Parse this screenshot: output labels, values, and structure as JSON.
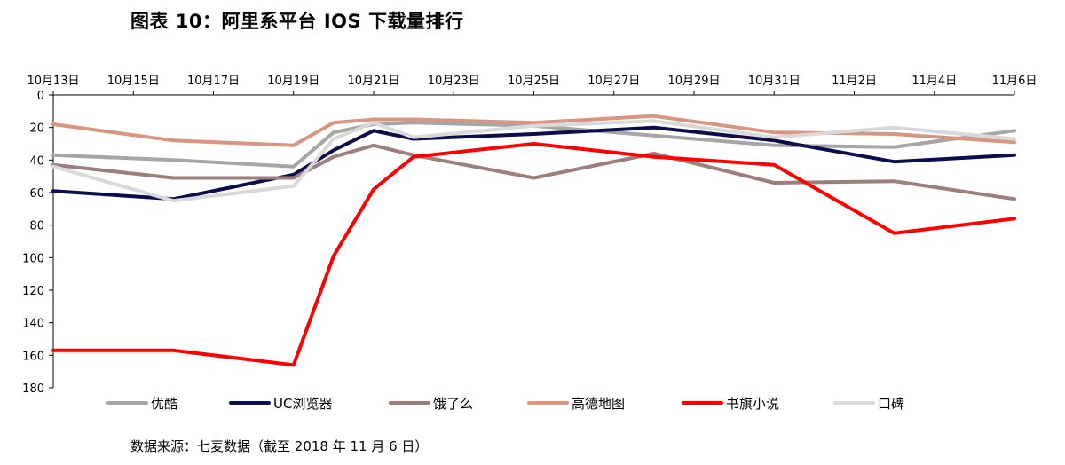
{
  "title": "图表 10：阿里系平台 IOS 下载量排行",
  "source": "数据来源：七麦数据（截至 2018 年 11 月 6 日）",
  "chart_data": {
    "type": "line",
    "title": "图表 10：阿里系平台 IOS 下载量排行",
    "x": [
      "10月13日",
      "10月16日",
      "10月19日",
      "10月20日",
      "10月21日",
      "10月22日",
      "10月25日",
      "10月28日",
      "10月31日",
      "11月3日",
      "11月6日"
    ],
    "x_ticks": [
      "10月13日",
      "10月15日",
      "10月17日",
      "10月19日",
      "10月21日",
      "10月23日",
      "10月25日",
      "10月27日",
      "10月29日",
      "10月31日",
      "11月2日",
      "11月4日",
      "11月6日"
    ],
    "y_ticks": [
      0,
      20,
      40,
      60,
      80,
      100,
      120,
      140,
      160,
      180
    ],
    "ylim": [
      0,
      180
    ],
    "y_inverted": true,
    "x_axis_position": "top",
    "legend_position": "bottom",
    "series": [
      {
        "name": "优酷",
        "color": "#a6a6a6",
        "values": [
          37,
          40,
          44,
          23,
          18,
          17,
          19,
          25,
          31,
          32,
          22
        ]
      },
      {
        "name": "UC浏览器",
        "color": "#0d0d4d",
        "values": [
          59,
          64,
          49,
          34,
          22,
          27,
          24,
          20,
          28,
          41,
          37
        ]
      },
      {
        "name": "饿了么",
        "color": "#9e7d7d",
        "values": [
          43,
          51,
          51,
          38,
          31,
          37,
          51,
          36,
          54,
          53,
          64
        ]
      },
      {
        "name": "高德地图",
        "color": "#d9957f",
        "values": [
          18,
          28,
          31,
          17,
          15,
          15,
          17,
          13,
          23,
          24,
          29
        ]
      },
      {
        "name": "书旗小说",
        "color": "#ff0000",
        "values": [
          157,
          157,
          166,
          99,
          58,
          38,
          30,
          38,
          43,
          85,
          76
        ]
      },
      {
        "name": "口碑",
        "color": "#d9d9d9",
        "values": [
          44,
          65,
          56,
          27,
          17,
          26,
          19,
          16,
          26,
          20,
          27
        ]
      }
    ]
  }
}
